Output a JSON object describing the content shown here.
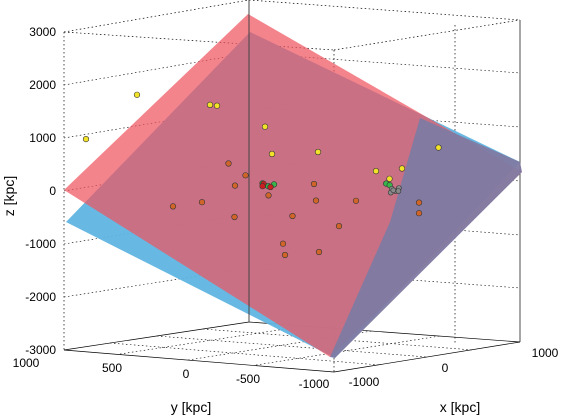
{
  "chart_data": {
    "type": "scatter",
    "projection": "3d",
    "title": "",
    "xlabel": "x [kpc]",
    "ylabel": "y [kpc]",
    "zlabel": "z [kpc]",
    "z_ticks": [
      "3000",
      "2000",
      "1000",
      "0",
      "-1000",
      "-2000",
      "-3000"
    ],
    "y_ticks": [
      "1000",
      "500",
      "0",
      "-500",
      "-1000"
    ],
    "x_ticks": [
      "-1000",
      "0",
      "1000"
    ],
    "grid": true,
    "colors": {
      "red_plane": "#f05560",
      "blue_plane": "#5fb4e2",
      "overlap": "#7f7aa2",
      "yellow_points": "#f2e22a",
      "orange_points": "#d0652a",
      "green_points": "#39b54a",
      "grey_points": "#8a8a8a"
    },
    "planes": [
      "red-plane",
      "blue-plane"
    ],
    "series": [
      {
        "color": "yellow",
        "points": [
          {
            "x": -650,
            "y": 700,
            "z": 1900
          },
          {
            "x": -350,
            "y": 300,
            "z": 1600
          },
          {
            "x": -500,
            "y": 200,
            "z": 1550
          },
          {
            "x": -800,
            "y": 1000,
            "z": 1150
          },
          {
            "x": -500,
            "y": -300,
            "z": 950
          },
          {
            "x": -350,
            "y": -200,
            "z": 500
          },
          {
            "x": -150,
            "y": -400,
            "z": 500
          },
          {
            "x": 150,
            "y": -600,
            "z": 120
          },
          {
            "x": 400,
            "y": -450,
            "z": 80
          },
          {
            "x": 550,
            "y": -400,
            "z": 320
          },
          {
            "x": 900,
            "y": -350,
            "z": 800
          }
        ]
      },
      {
        "color": "orange",
        "points": [
          {
            "x": -300,
            "y": 250,
            "z": 500
          },
          {
            "x": -250,
            "y": 150,
            "z": 250
          },
          {
            "x": -200,
            "y": 300,
            "z": 120
          },
          {
            "x": -150,
            "y": 50,
            "z": -150
          },
          {
            "x": -200,
            "y": 600,
            "z": -80
          },
          {
            "x": -350,
            "y": 700,
            "z": -150
          },
          {
            "x": 0,
            "y": -200,
            "z": 0
          },
          {
            "x": 200,
            "y": 0,
            "z": -200
          },
          {
            "x": -250,
            "y": 250,
            "z": -500
          },
          {
            "x": 50,
            "y": 50,
            "z": -500
          },
          {
            "x": 200,
            "y": 300,
            "z": -900
          },
          {
            "x": 300,
            "y": -100,
            "z": -700
          },
          {
            "x": 400,
            "y": 500,
            "z": -1000
          },
          {
            "x": 500,
            "y": 300,
            "z": -1000
          },
          {
            "x": 350,
            "y": -200,
            "z": -250
          },
          {
            "x": 600,
            "y": -500,
            "z": -350
          },
          {
            "x": 600,
            "y": -500,
            "z": -550
          }
        ]
      },
      {
        "color": "green",
        "points": [
          {
            "x": -200,
            "y": 50,
            "z": 70
          },
          {
            "x": -150,
            "y": 0,
            "z": 40
          },
          {
            "x": -180,
            "y": 20,
            "z": 10
          },
          {
            "x": 400,
            "y": -420,
            "z": 0
          },
          {
            "x": 420,
            "y": -430,
            "z": -30
          }
        ]
      },
      {
        "color": "red-dark",
        "points": [
          {
            "x": -210,
            "y": 30,
            "z": 50
          },
          {
            "x": -190,
            "y": 60,
            "z": 20
          },
          {
            "x": -170,
            "y": 10,
            "z": -10
          }
        ]
      },
      {
        "color": "grey",
        "points": [
          {
            "x": 430,
            "y": -440,
            "z": -100
          },
          {
            "x": 440,
            "y": -460,
            "z": -150
          },
          {
            "x": 410,
            "y": -450,
            "z": -180
          },
          {
            "x": 450,
            "y": -430,
            "z": -120
          },
          {
            "x": 460,
            "y": -470,
            "z": -90
          },
          {
            "x": 470,
            "y": -455,
            "z": -140
          }
        ]
      }
    ]
  }
}
